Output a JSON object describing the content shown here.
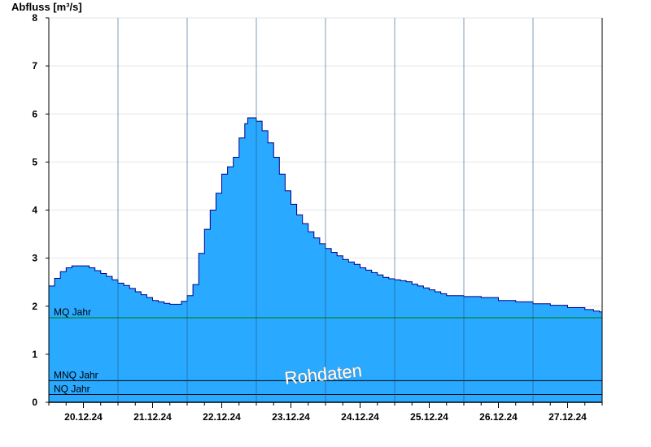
{
  "chart_data": {
    "type": "area",
    "ylabel": "Abfluss [m³/s]",
    "xlabel": "",
    "ylim": [
      0,
      8
    ],
    "yticks": [
      "0",
      "1",
      "2",
      "3",
      "4",
      "5",
      "6",
      "7",
      "8"
    ],
    "xticks": [
      "20.12.24",
      "21.12.24",
      "22.12.24",
      "23.12.24",
      "24.12.24",
      "25.12.24",
      "26.12.24",
      "27.12.24"
    ],
    "grid": true,
    "fill_color": "#29a9ff",
    "line_color": "#00008b",
    "watermark": "Rohdaten",
    "reference_lines": [
      {
        "label": "MQ Jahr",
        "value": 1.76,
        "color": "#007a00"
      },
      {
        "label": "MNQ Jahr",
        "value": 0.45,
        "color": "#000000"
      },
      {
        "label": "NQ Jahr",
        "value": 0.16,
        "color": "#000000"
      }
    ],
    "x_start": "19.12.24 12:00",
    "x_end": "27.12.24 12:00",
    "series": [
      {
        "values": [
          [
            "19.12.24 12:00",
            2.42
          ],
          [
            "19.12.24 14:00",
            2.58
          ],
          [
            "19.12.24 16:00",
            2.72
          ],
          [
            "19.12.24 18:00",
            2.8
          ],
          [
            "19.12.24 20:00",
            2.84
          ],
          [
            "19.12.24 22:00",
            2.84
          ],
          [
            "20.12.24 00:00",
            2.84
          ],
          [
            "20.12.24 02:00",
            2.8
          ],
          [
            "20.12.24 04:00",
            2.74
          ],
          [
            "20.12.24 06:00",
            2.68
          ],
          [
            "20.12.24 08:00",
            2.62
          ],
          [
            "20.12.24 10:00",
            2.55
          ],
          [
            "20.12.24 12:00",
            2.48
          ],
          [
            "20.12.24 14:00",
            2.43
          ],
          [
            "20.12.24 16:00",
            2.37
          ],
          [
            "20.12.24 18:00",
            2.3
          ],
          [
            "20.12.24 20:00",
            2.24
          ],
          [
            "20.12.24 22:00",
            2.18
          ],
          [
            "21.12.24 00:00",
            2.12
          ],
          [
            "21.12.24 02:00",
            2.09
          ],
          [
            "21.12.24 04:00",
            2.06
          ],
          [
            "21.12.24 06:00",
            2.04
          ],
          [
            "21.12.24 08:00",
            2.04
          ],
          [
            "21.12.24 10:00",
            2.1
          ],
          [
            "21.12.24 12:00",
            2.22
          ],
          [
            "21.12.24 14:00",
            2.45
          ],
          [
            "21.12.24 16:00",
            3.1
          ],
          [
            "21.12.24 18:00",
            3.6
          ],
          [
            "21.12.24 20:00",
            4.0
          ],
          [
            "21.12.24 22:00",
            4.35
          ],
          [
            "22.12.24 00:00",
            4.75
          ],
          [
            "22.12.24 02:00",
            4.9
          ],
          [
            "22.12.24 04:00",
            5.1
          ],
          [
            "22.12.24 06:00",
            5.5
          ],
          [
            "22.12.24 08:00",
            5.8
          ],
          [
            "22.12.24 09:00",
            5.92
          ],
          [
            "22.12.24 11:00",
            5.92
          ],
          [
            "22.12.24 12:00",
            5.85
          ],
          [
            "22.12.24 14:00",
            5.65
          ],
          [
            "22.12.24 16:00",
            5.4
          ],
          [
            "22.12.24 18:00",
            5.1
          ],
          [
            "22.12.24 20:00",
            4.75
          ],
          [
            "22.12.24 22:00",
            4.4
          ],
          [
            "23.12.24 00:00",
            4.12
          ],
          [
            "23.12.24 02:00",
            3.9
          ],
          [
            "23.12.24 04:00",
            3.72
          ],
          [
            "23.12.24 06:00",
            3.55
          ],
          [
            "23.12.24 08:00",
            3.42
          ],
          [
            "23.12.24 10:00",
            3.3
          ],
          [
            "23.12.24 12:00",
            3.2
          ],
          [
            "23.12.24 14:00",
            3.12
          ],
          [
            "23.12.24 16:00",
            3.05
          ],
          [
            "23.12.24 18:00",
            2.97
          ],
          [
            "23.12.24 20:00",
            2.92
          ],
          [
            "23.12.24 22:00",
            2.87
          ],
          [
            "24.12.24 00:00",
            2.8
          ],
          [
            "24.12.24 02:00",
            2.75
          ],
          [
            "24.12.24 04:00",
            2.7
          ],
          [
            "24.12.24 06:00",
            2.65
          ],
          [
            "24.12.24 08:00",
            2.6
          ],
          [
            "24.12.24 10:00",
            2.57
          ],
          [
            "24.12.24 12:00",
            2.55
          ],
          [
            "24.12.24 14:00",
            2.53
          ],
          [
            "24.12.24 16:00",
            2.51
          ],
          [
            "24.12.24 18:00",
            2.46
          ],
          [
            "24.12.24 20:00",
            2.42
          ],
          [
            "24.12.24 22:00",
            2.38
          ],
          [
            "25.12.24 00:00",
            2.34
          ],
          [
            "25.12.24 02:00",
            2.3
          ],
          [
            "25.12.24 04:00",
            2.26
          ],
          [
            "25.12.24 06:00",
            2.22
          ],
          [
            "25.12.24 12:00",
            2.2
          ],
          [
            "25.12.24 18:00",
            2.18
          ],
          [
            "26.12.24 00:00",
            2.12
          ],
          [
            "26.12.24 06:00",
            2.09
          ],
          [
            "26.12.24 12:00",
            2.05
          ],
          [
            "26.12.24 18:00",
            2.02
          ],
          [
            "27.12.24 00:00",
            1.97
          ],
          [
            "27.12.24 06:00",
            1.93
          ],
          [
            "27.12.24 09:00",
            1.9
          ],
          [
            "27.12.24 11:00",
            1.88
          ],
          [
            "27.12.24 12:00",
            1.82
          ]
        ]
      }
    ]
  }
}
